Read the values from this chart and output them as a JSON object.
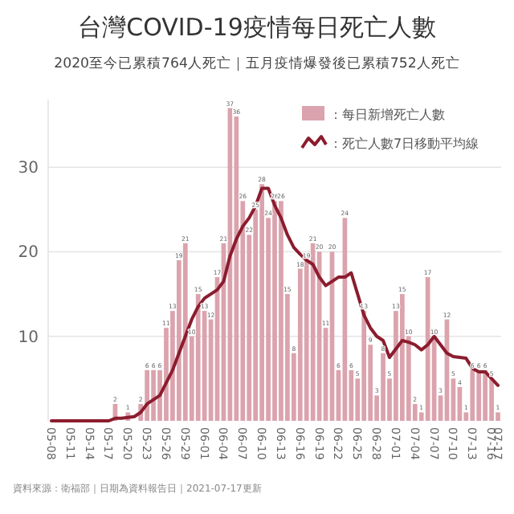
{
  "chart_data": {
    "type": "bar",
    "title": "台灣COVID-19疫情每日死亡人數",
    "subtitle": "2020至今已累積764人死亡｜五月疫情爆發後已累積752人死亡",
    "categories": [
      "05-08",
      null,
      null,
      "05-11",
      null,
      null,
      "05-14",
      null,
      null,
      "05-17",
      null,
      null,
      "05-20",
      null,
      null,
      "05-23",
      null,
      null,
      "05-26",
      null,
      null,
      "05-29",
      null,
      null,
      "06-01",
      null,
      null,
      "06-04",
      null,
      null,
      "06-07",
      null,
      null,
      "06-10",
      null,
      null,
      "06-13",
      null,
      null,
      "06-16",
      null,
      null,
      "06-19",
      null,
      null,
      "06-22",
      null,
      null,
      "06-25",
      null,
      null,
      "06-28",
      null,
      null,
      "07-01",
      null,
      null,
      "07-04",
      null,
      null,
      "07-07",
      null,
      null,
      "07-10",
      null,
      null,
      "07-13",
      null,
      null,
      "07-16",
      "07-17"
    ],
    "series": [
      {
        "name": "：每日新增死亡人數",
        "color": "#dba3ad",
        "values": [
          0,
          0,
          0,
          0,
          0,
          0,
          0,
          0,
          0,
          0,
          2,
          0,
          1,
          0,
          2,
          6,
          6,
          6,
          11,
          13,
          19,
          21,
          10,
          15,
          13,
          12,
          17,
          21,
          37,
          36,
          26,
          22,
          25,
          28,
          24,
          26,
          26,
          15,
          8,
          18,
          19,
          21,
          20,
          11,
          20,
          6,
          24,
          6,
          5,
          13,
          9,
          3,
          8,
          5,
          13,
          15,
          10,
          2,
          1,
          17,
          10,
          3,
          12,
          5,
          4,
          1,
          6,
          6,
          6,
          5,
          1
        ],
        "value_labels": [
          null,
          null,
          null,
          null,
          null,
          null,
          null,
          null,
          null,
          null,
          "2",
          null,
          "1",
          null,
          "2",
          "6",
          "6",
          "6",
          "11",
          "13",
          "19",
          "21",
          "10",
          "15",
          "13",
          "12",
          "17",
          "21",
          "37",
          "36",
          "26",
          "22",
          "25",
          "28",
          "24",
          "26",
          "26",
          "15",
          "8",
          "18",
          "19",
          "21",
          "20",
          "11",
          "20",
          "6",
          "24",
          "6",
          "5",
          "13",
          "9",
          "3",
          "8",
          "5",
          "13",
          "15",
          "10",
          "2",
          "1",
          "17",
          "10",
          "3",
          "12",
          "5",
          "4",
          "1",
          "6",
          "6",
          "6",
          "5",
          "1"
        ]
      },
      {
        "name": "：死亡人數7日移動平均線",
        "type": "line",
        "color": "#8b1c2e",
        "values": [
          0,
          0,
          0,
          0,
          0,
          0,
          0,
          0,
          0,
          0,
          0.3,
          0.3,
          0.4,
          0.5,
          1,
          2,
          2.5,
          3,
          4.5,
          6,
          8,
          10,
          12,
          13.5,
          14.5,
          15,
          15.5,
          16.5,
          19.5,
          21.5,
          23,
          24,
          25.4,
          27.5,
          27.5,
          25.5,
          24,
          22,
          20.5,
          19.7,
          19,
          18.5,
          17,
          16,
          16.5,
          17,
          17,
          17.5,
          15,
          12.5,
          11,
          10,
          9.5,
          7.5,
          8.5,
          9.5,
          9.3,
          9,
          8.4,
          9,
          10,
          9,
          8,
          7.6,
          7.5,
          7.4,
          6.2,
          5.8,
          5.8,
          5,
          4.2
        ]
      }
    ],
    "ylim": [
      0,
      38
    ],
    "yticks": [
      10,
      20,
      30
    ],
    "grid": "y",
    "legend": "top right",
    "annotations": [
      "資料來源：衛福部｜日期為資料報告日｜2021-07-17更新"
    ]
  }
}
